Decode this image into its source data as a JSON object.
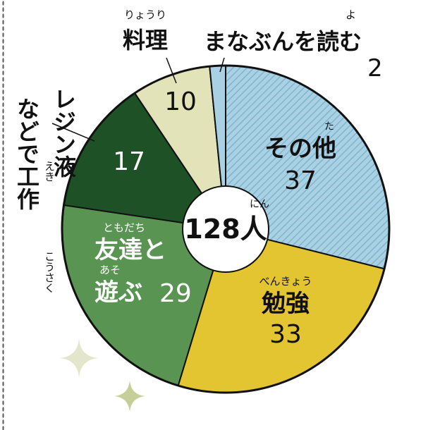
{
  "chart_data": {
    "type": "pie",
    "style": "donut",
    "center_label": {
      "value": "128",
      "unit": "人",
      "unit_ruby": "にん"
    },
    "slices": [
      {
        "name": "その他",
        "ruby": "た",
        "value": 37,
        "color": "#a9d1e3",
        "pattern": "diagonal-stripes"
      },
      {
        "name": "勉強",
        "ruby": "べんきょう",
        "value": 33,
        "color": "#e3c431"
      },
      {
        "name": "友達と遊ぶ",
        "ruby_1": "ともだち",
        "ruby_2": "あそ",
        "value": 29,
        "color": "#5a9452"
      },
      {
        "name": "レジン液などで工作",
        "ruby_1": "えき",
        "ruby_2": "こうさく",
        "value": 17,
        "color": "#1e5226"
      },
      {
        "name": "料理",
        "ruby": "りょうり",
        "value": 10,
        "color": "#e2e3b8"
      },
      {
        "name": "まなぶんを読む",
        "ruby": "よ",
        "value": 2,
        "color": "#a9d1e3"
      }
    ]
  },
  "labels": {
    "sonota_name": "その他",
    "sonota_ruby": "た",
    "sonota_value": "37",
    "benkyo_ruby": "べんきょう",
    "benkyo_name": "勉強",
    "benkyo_value": "33",
    "tomo_ruby_1": "ともだち",
    "tomo_name_1": "友達と",
    "tomo_ruby_2": "あそ",
    "tomo_name_2": "遊ぶ",
    "tomo_value": "29",
    "resin_value": "17",
    "resin_name_1": "レジン液",
    "resin_name_2": "などで工作",
    "resin_ruby_1": "えき",
    "resin_ruby_2": "こうさく",
    "ryori_ruby": "りょうり",
    "ryori_name": "料理",
    "ryori_value": "10",
    "manabun_ruby": "よ",
    "manabun_name": "まなぶんを読む",
    "manabun_value": "2",
    "center_value": "128人",
    "center_ruby": "にん"
  }
}
